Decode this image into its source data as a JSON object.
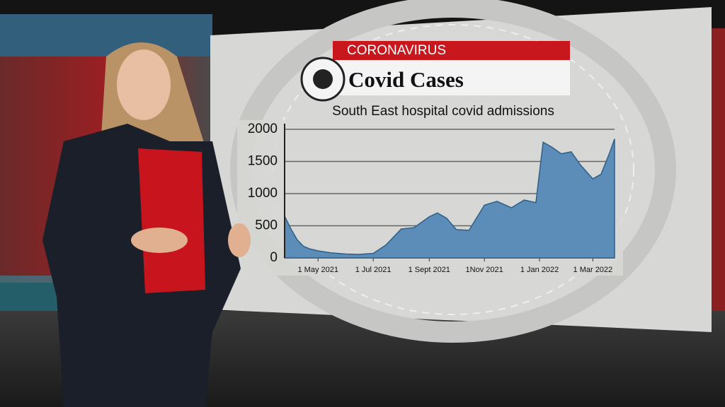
{
  "chart_data": {
    "type": "area",
    "kicker": "CORONAVIRUS",
    "heading": "Covid Cases",
    "title": "South East hospital covid admissions",
    "color": "#5b8db8",
    "line_color": "#2f5f86",
    "grid": true,
    "x": [
      "2021-03-25",
      "2021-04-01",
      "2021-04-08",
      "2021-04-15",
      "2021-04-22",
      "2021-05-01",
      "2021-05-15",
      "2021-06-01",
      "2021-06-15",
      "2021-07-01",
      "2021-07-15",
      "2021-08-01",
      "2021-08-15",
      "2021-09-01",
      "2021-09-10",
      "2021-09-20",
      "2021-10-01",
      "2021-10-15",
      "2021-11-01",
      "2021-11-15",
      "2021-12-01",
      "2021-12-15",
      "2021-12-28",
      "2022-01-05",
      "2022-01-15",
      "2022-01-25",
      "2022-02-05",
      "2022-02-15",
      "2022-03-01",
      "2022-03-10",
      "2022-03-20",
      "2022-03-25"
    ],
    "values": [
      650,
      450,
      280,
      180,
      140,
      110,
      80,
      60,
      55,
      70,
      200,
      450,
      470,
      640,
      700,
      620,
      440,
      430,
      820,
      880,
      780,
      900,
      860,
      1800,
      1720,
      1620,
      1650,
      1450,
      1230,
      1300,
      1650,
      1850
    ],
    "xlim": [
      "2021-03-25",
      "2022-03-25"
    ],
    "xticks": [
      {
        "value": "2021-05-01",
        "label": "1 May 2021"
      },
      {
        "value": "2021-07-01",
        "label": "1 Jul 2021"
      },
      {
        "value": "2021-09-01",
        "label": "1 Sept 2021"
      },
      {
        "value": "2021-11-01",
        "label": "1Nov 2021"
      },
      {
        "value": "2022-01-01",
        "label": "1 Jan 2022"
      },
      {
        "value": "2022-03-01",
        "label": "1 Mar 2022"
      }
    ],
    "ylim": [
      0,
      2000
    ],
    "yticks": [
      0,
      500,
      1000,
      1500,
      2000
    ]
  }
}
